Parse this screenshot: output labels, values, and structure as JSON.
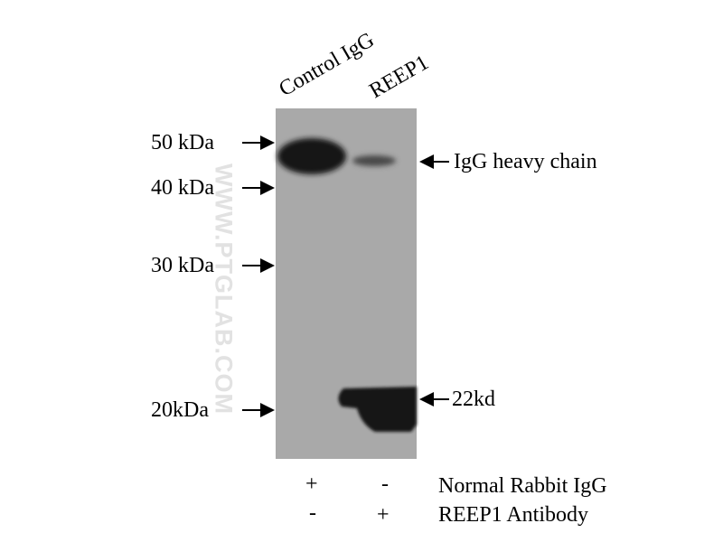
{
  "lanes": [
    "Control IgG",
    "REEP1"
  ],
  "markers": [
    "50 kDa",
    "40 kDa",
    "30 kDa",
    "20kDa"
  ],
  "band_labels": [
    "IgG heavy chain",
    "22kd"
  ],
  "conditions": [
    {
      "label": "Normal Rabbit IgG",
      "lane1": "+",
      "lane2": "-"
    },
    {
      "label": "REEP1 Antibody",
      "lane1": "-",
      "lane2": "+"
    }
  ],
  "watermark": "WWW.PTGLAB.COM",
  "colors": {
    "membrane": "#a9a9a9",
    "band": "#141414"
  }
}
